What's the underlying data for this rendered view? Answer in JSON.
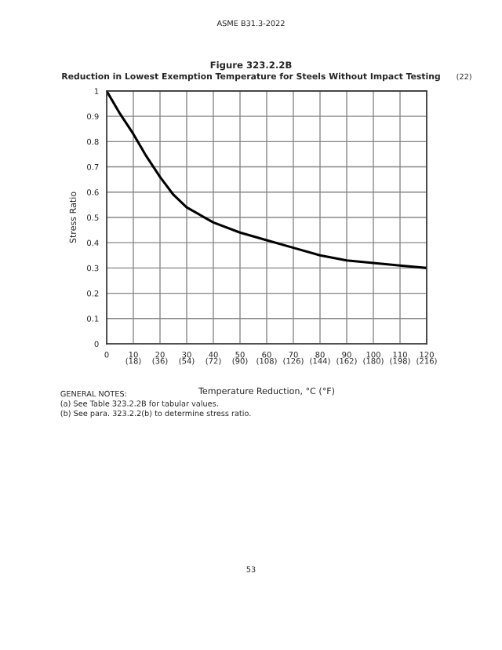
{
  "chart_data": {
    "type": "line",
    "title": "Figure 323.2.2B",
    "subtitle": "Reduction in Lowest Exemption Temperature for Steels Without Impact Testing",
    "xlabel": "Temperature Reduction, °C (°F)",
    "ylabel": "Stress Ratio",
    "x": [
      0,
      5,
      10,
      15,
      20,
      25,
      30,
      40,
      50,
      60,
      70,
      80,
      90,
      100,
      110,
      120
    ],
    "series": [
      {
        "color": "#000000",
        "values": [
          1.0,
          0.91,
          0.83,
          0.74,
          0.66,
          0.59,
          0.54,
          0.48,
          0.44,
          0.41,
          0.38,
          0.35,
          0.33,
          0.32,
          0.31,
          0.3
        ]
      }
    ],
    "xlim": [
      0,
      120
    ],
    "ylim": [
      0,
      1
    ],
    "xticks": [
      0,
      10,
      20,
      30,
      40,
      50,
      60,
      70,
      80,
      90,
      100,
      110,
      120
    ],
    "x2lim": [
      0,
      216
    ],
    "x2ticks": [
      {
        "value": 18,
        "label": "(18)"
      },
      {
        "value": 36,
        "label": "(36)"
      },
      {
        "value": 54,
        "label": "(54)"
      },
      {
        "value": 72,
        "label": "(72)"
      },
      {
        "value": 90,
        "label": "(90)"
      },
      {
        "value": 108,
        "label": "(108)"
      },
      {
        "value": 126,
        "label": "(126)"
      },
      {
        "value": 144,
        "label": "(144)"
      },
      {
        "value": 162,
        "label": "(162)"
      },
      {
        "value": 180,
        "label": "(180)"
      },
      {
        "value": 198,
        "label": "(198)"
      },
      {
        "value": 216,
        "label": "(216)"
      }
    ],
    "yticks": [
      0,
      0.1,
      0.2,
      0.3,
      0.4,
      0.5,
      0.6,
      0.7,
      0.8,
      0.9,
      1
    ],
    "grid": true,
    "line_style": "solid",
    "annotations": [
      "ASME B31.3-2022",
      "(22)",
      "GENERAL NOTES:",
      "(a) See Table 323.2.2B for tabular values.",
      "(b) See para. 323.2.2(b) to determine stress ratio.",
      "53"
    ]
  }
}
